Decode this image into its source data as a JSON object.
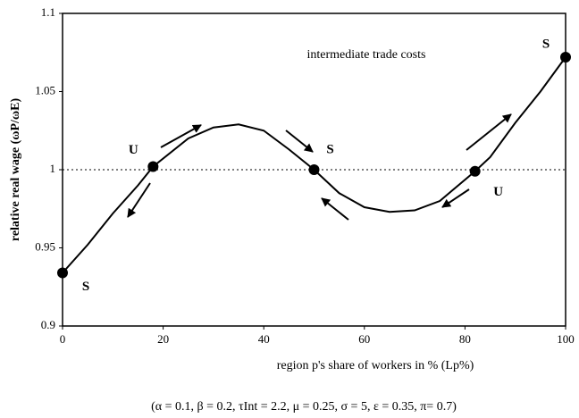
{
  "chart_data": {
    "type": "line",
    "annotation": "intermediate trade costs",
    "x_label": "region p's share of workers in % (Lp%)",
    "y_label": "relative real wage (ωP/ωE)",
    "footnote": "(α = 0.1, β = 0.2, τInt = 2.2, μ = 0.25, σ = 5, ε = 0.35, π= 0.7)",
    "x": [
      0,
      5,
      10,
      15,
      18,
      25,
      30,
      35,
      40,
      45,
      50,
      55,
      60,
      65,
      70,
      75,
      82,
      85,
      90,
      95,
      100
    ],
    "series": [
      {
        "name": "relative real wage",
        "color": "#000000",
        "values": [
          0.934,
          0.952,
          0.972,
          0.99,
          1.002,
          1.02,
          1.027,
          1.029,
          1.025,
          1.013,
          1.0,
          0.985,
          0.976,
          0.973,
          0.974,
          0.98,
          0.999,
          1.008,
          1.03,
          1.05,
          1.072
        ]
      }
    ],
    "points": [
      {
        "x": 0,
        "y": 0.934,
        "label": "S"
      },
      {
        "x": 18,
        "y": 1.002,
        "label": "U"
      },
      {
        "x": 50,
        "y": 1.0,
        "label": "S"
      },
      {
        "x": 82,
        "y": 0.999,
        "label": "U"
      },
      {
        "x": 100,
        "y": 1.072,
        "label": "S"
      }
    ],
    "reference_line": 1,
    "xlim": [
      0,
      100
    ],
    "xticks": [
      0,
      20,
      40,
      60,
      80,
      100
    ],
    "ylim": [
      0.9,
      1.1
    ],
    "yticks": [
      0.9,
      0.95,
      1,
      1.05,
      1.1
    ]
  }
}
